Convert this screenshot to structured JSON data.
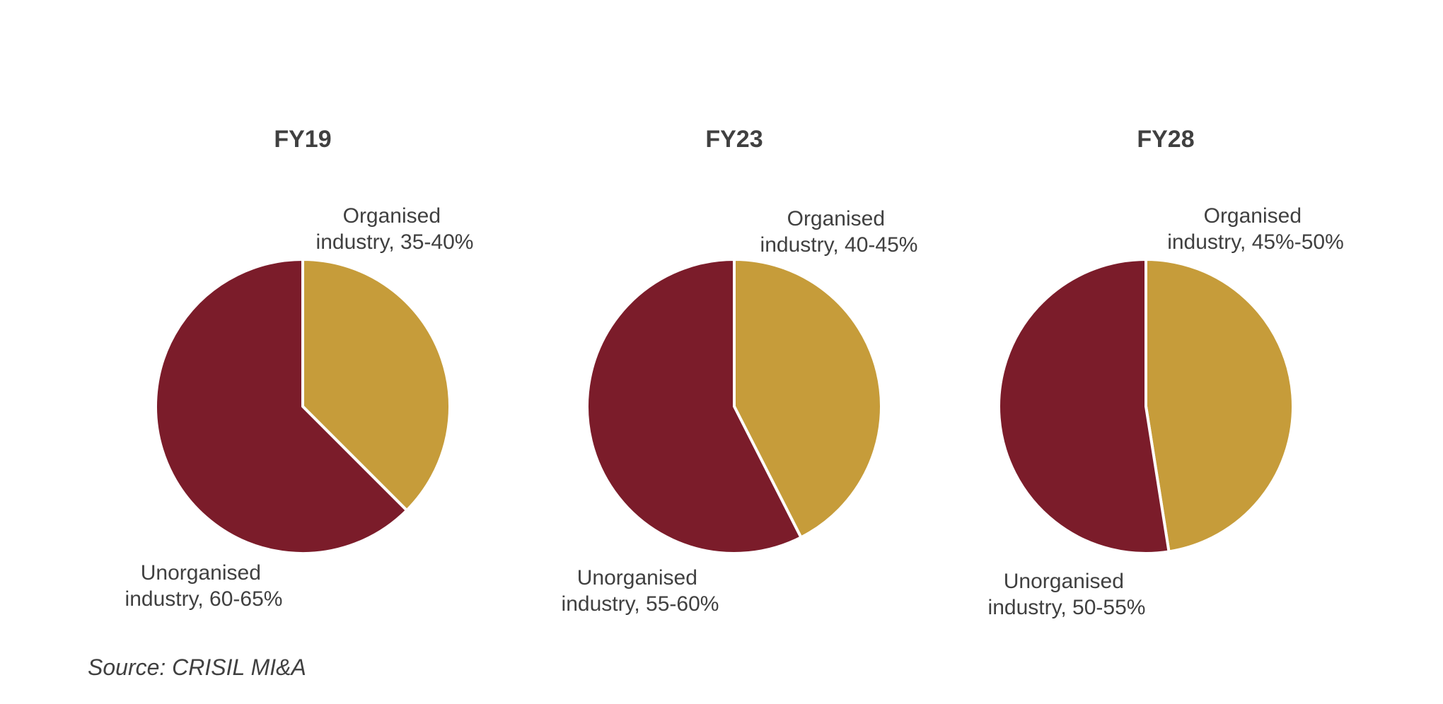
{
  "colors": {
    "organised": "#C69C3A",
    "unorganised": "#7B1C2A",
    "text": "#404040",
    "separator": "#ffffff"
  },
  "chart_data": [
    {
      "type": "pie",
      "title": "FY19",
      "slices": [
        {
          "label_line1": "Organised",
          "label_line2": "industry, 35-40%",
          "value": 37.5,
          "color": "#C69C3A"
        },
        {
          "label_line1": "Unorganised",
          "label_line2": "industry, 60-65%",
          "value": 62.5,
          "color": "#7B1C2A"
        }
      ]
    },
    {
      "type": "pie",
      "title": "FY23",
      "slices": [
        {
          "label_line1": "Organised",
          "label_line2": "industry, 40-45%",
          "value": 42.5,
          "color": "#C69C3A"
        },
        {
          "label_line1": "Unorganised",
          "label_line2": "industry, 55-60%",
          "value": 57.5,
          "color": "#7B1C2A"
        }
      ]
    },
    {
      "type": "pie",
      "title": "FY28",
      "slices": [
        {
          "label_line1": "Organised",
          "label_line2": "industry, 45%-50%",
          "value": 47.5,
          "color": "#C69C3A"
        },
        {
          "label_line1": "Unorganised",
          "label_line2": "industry, 50-55%",
          "value": 52.5,
          "color": "#7B1C2A"
        }
      ]
    }
  ],
  "source": "Source: CRISIL MI&A"
}
